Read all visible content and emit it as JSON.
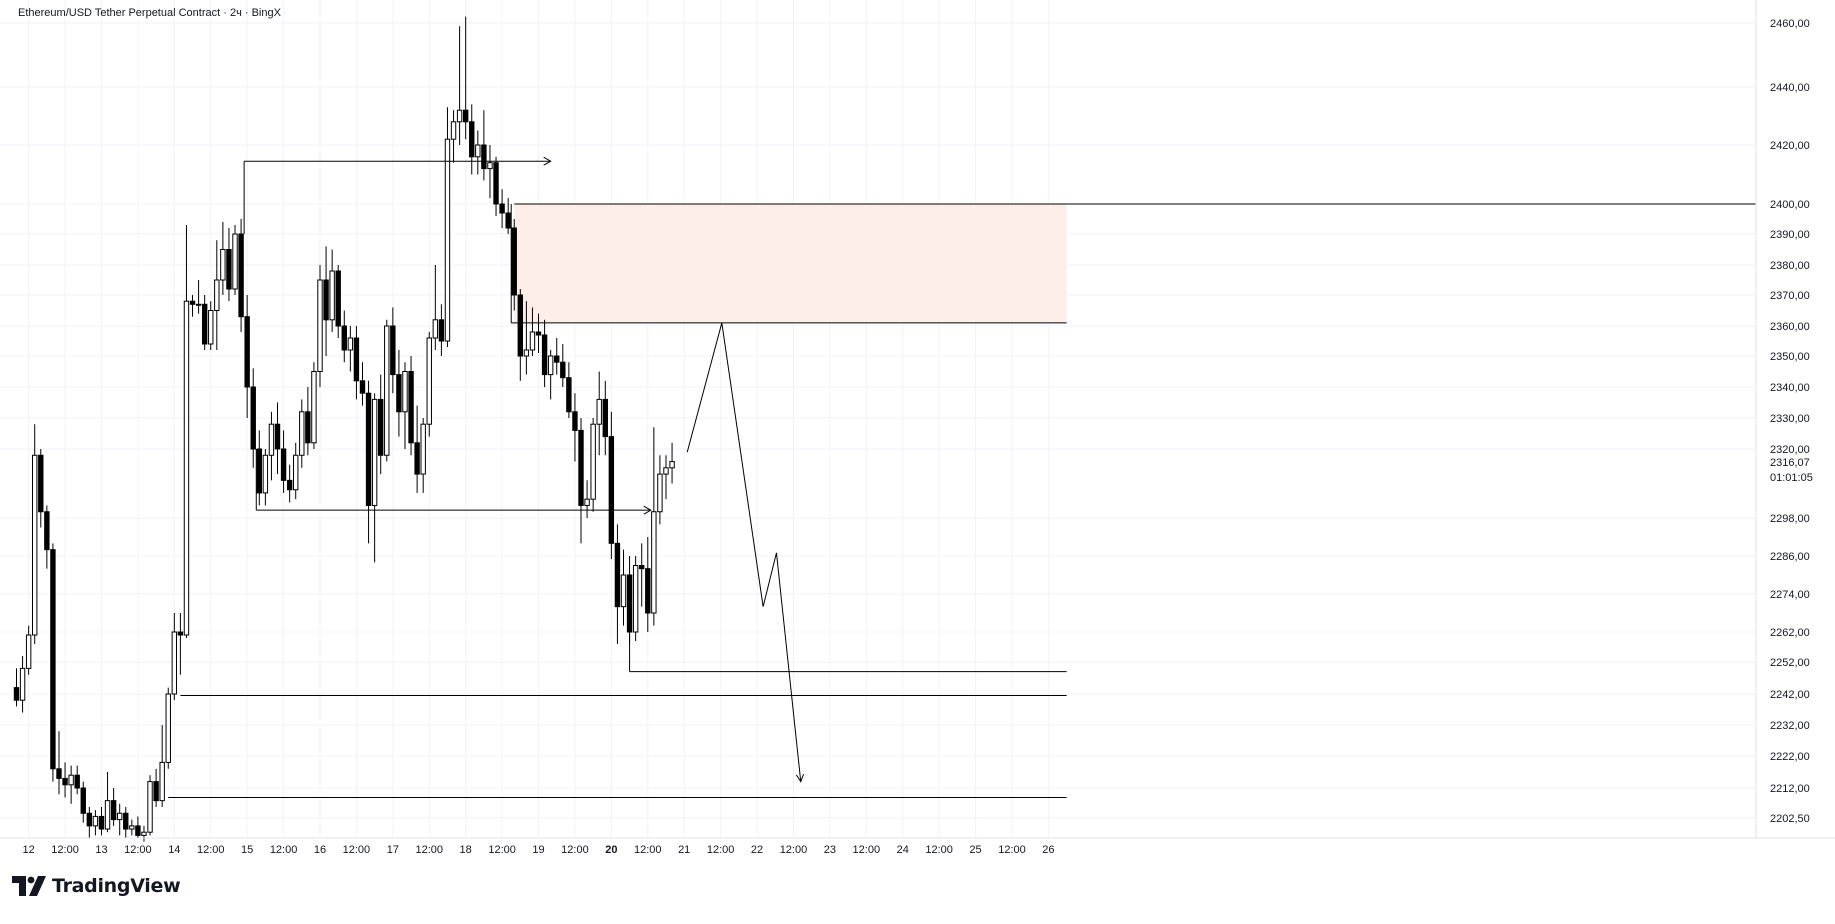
{
  "header": {
    "title": "Ethereum/USD Tether Perpetual Contract · 2ч · BingX"
  },
  "branding": {
    "logo_text": "TradingView",
    "logo_icon": "tradingview-logo-icon"
  },
  "price_scale": {
    "current_price": "2316,07",
    "countdown": "01:01:05"
  },
  "colors": {
    "background": "#ffffff",
    "grid": "#f0f3fa",
    "candle_up_fill": "#ffffff",
    "candle_down_fill": "#000000",
    "candle_border": "#000000",
    "drawing": "#000000",
    "supply_zone": "#fdeeea"
  },
  "chart_data": {
    "type": "candlestick",
    "symbol": "ETHUSDT.P",
    "interval": "2ч",
    "ylim": [
      2196,
      2468
    ],
    "y_ticks": [
      {
        "label": "2460,00",
        "value": 2460
      },
      {
        "label": "2440,00",
        "value": 2440
      },
      {
        "label": "2420,00",
        "value": 2420
      },
      {
        "label": "2400,00",
        "value": 2400
      },
      {
        "label": "2390,00",
        "value": 2390
      },
      {
        "label": "2380,00",
        "value": 2380
      },
      {
        "label": "2370,00",
        "value": 2370
      },
      {
        "label": "2360,00",
        "value": 2360
      },
      {
        "label": "2350,00",
        "value": 2350
      },
      {
        "label": "2340,00",
        "value": 2340
      },
      {
        "label": "2330,00",
        "value": 2330
      },
      {
        "label": "2320,00",
        "value": 2320
      },
      {
        "label": "2298,00",
        "value": 2298
      },
      {
        "label": "2286,00",
        "value": 2286
      },
      {
        "label": "2274,00",
        "value": 2274
      },
      {
        "label": "2262,00",
        "value": 2262
      },
      {
        "label": "2252,00",
        "value": 2252
      },
      {
        "label": "2242,00",
        "value": 2242
      },
      {
        "label": "2232,00",
        "value": 2232
      },
      {
        "label": "2222,00",
        "value": 2222
      },
      {
        "label": "2212,00",
        "value": 2212
      },
      {
        "label": "2202,50",
        "value": 2202.5
      }
    ],
    "x_ticks": [
      {
        "label": "12",
        "i": 2,
        "bold": false
      },
      {
        "label": "12:00",
        "i": 8,
        "bold": false
      },
      {
        "label": "13",
        "i": 14,
        "bold": false
      },
      {
        "label": "12:00",
        "i": 20,
        "bold": false
      },
      {
        "label": "14",
        "i": 26,
        "bold": false
      },
      {
        "label": "12:00",
        "i": 32,
        "bold": false
      },
      {
        "label": "15",
        "i": 38,
        "bold": false
      },
      {
        "label": "12:00",
        "i": 44,
        "bold": false
      },
      {
        "label": "16",
        "i": 50,
        "bold": false
      },
      {
        "label": "12:00",
        "i": 56,
        "bold": false
      },
      {
        "label": "17",
        "i": 62,
        "bold": false
      },
      {
        "label": "12:00",
        "i": 68,
        "bold": false
      },
      {
        "label": "18",
        "i": 74,
        "bold": false
      },
      {
        "label": "12:00",
        "i": 80,
        "bold": false
      },
      {
        "label": "19",
        "i": 86,
        "bold": false
      },
      {
        "label": "12:00",
        "i": 92,
        "bold": false
      },
      {
        "label": "20",
        "i": 98,
        "bold": true
      },
      {
        "label": "12:00",
        "i": 104,
        "bold": false
      },
      {
        "label": "21",
        "i": 110,
        "bold": false
      },
      {
        "label": "12:00",
        "i": 116,
        "bold": false
      },
      {
        "label": "22",
        "i": 122,
        "bold": false
      },
      {
        "label": "12:00",
        "i": 128,
        "bold": false
      },
      {
        "label": "23",
        "i": 134,
        "bold": false
      },
      {
        "label": "12:00",
        "i": 140,
        "bold": false
      },
      {
        "label": "24",
        "i": 146,
        "bold": false
      },
      {
        "label": "12:00",
        "i": 152,
        "bold": false
      },
      {
        "label": "25",
        "i": 158,
        "bold": false
      },
      {
        "label": "12:00",
        "i": 164,
        "bold": false
      },
      {
        "label": "26",
        "i": 170,
        "bold": false
      }
    ],
    "candles": [
      {
        "i": 0,
        "o": 2244,
        "h": 2250,
        "l": 2238,
        "c": 2240
      },
      {
        "i": 1,
        "o": 2240,
        "h": 2254,
        "l": 2236,
        "c": 2250
      },
      {
        "i": 2,
        "o": 2250,
        "h": 2264,
        "l": 2248,
        "c": 2261
      },
      {
        "i": 3,
        "o": 2261,
        "h": 2328,
        "l": 2258,
        "c": 2318
      },
      {
        "i": 4,
        "o": 2318,
        "h": 2320,
        "l": 2295,
        "c": 2300
      },
      {
        "i": 5,
        "o": 2300,
        "h": 2302,
        "l": 2282,
        "c": 2288
      },
      {
        "i": 6,
        "o": 2288,
        "h": 2290,
        "l": 2214,
        "c": 2218
      },
      {
        "i": 7,
        "o": 2218,
        "h": 2230,
        "l": 2210,
        "c": 2215
      },
      {
        "i": 8,
        "o": 2215,
        "h": 2220,
        "l": 2209,
        "c": 2213
      },
      {
        "i": 9,
        "o": 2213,
        "h": 2219,
        "l": 2207,
        "c": 2216
      },
      {
        "i": 10,
        "o": 2216,
        "h": 2219,
        "l": 2210,
        "c": 2212
      },
      {
        "i": 11,
        "o": 2212,
        "h": 2214,
        "l": 2201,
        "c": 2204
      },
      {
        "i": 12,
        "o": 2204,
        "h": 2206,
        "l": 2196,
        "c": 2200
      },
      {
        "i": 13,
        "o": 2200,
        "h": 2205,
        "l": 2197,
        "c": 2203
      },
      {
        "i": 14,
        "o": 2203,
        "h": 2206,
        "l": 2197,
        "c": 2199
      },
      {
        "i": 15,
        "o": 2199,
        "h": 2217,
        "l": 2198,
        "c": 2208
      },
      {
        "i": 16,
        "o": 2208,
        "h": 2212,
        "l": 2200,
        "c": 2202
      },
      {
        "i": 17,
        "o": 2202,
        "h": 2207,
        "l": 2197,
        "c": 2204
      },
      {
        "i": 18,
        "o": 2204,
        "h": 2206,
        "l": 2196,
        "c": 2199
      },
      {
        "i": 19,
        "o": 2199,
        "h": 2202,
        "l": 2197,
        "c": 2200
      },
      {
        "i": 20,
        "o": 2200,
        "h": 2203,
        "l": 2196,
        "c": 2197
      },
      {
        "i": 21,
        "o": 2197,
        "h": 2200,
        "l": 2195,
        "c": 2198
      },
      {
        "i": 22,
        "o": 2198,
        "h": 2216,
        "l": 2197,
        "c": 2214
      },
      {
        "i": 23,
        "o": 2214,
        "h": 2218,
        "l": 2206,
        "c": 2208
      },
      {
        "i": 24,
        "o": 2208,
        "h": 2232,
        "l": 2206,
        "c": 2220
      },
      {
        "i": 25,
        "o": 2220,
        "h": 2244,
        "l": 2218,
        "c": 2242
      },
      {
        "i": 26,
        "o": 2242,
        "h": 2268,
        "l": 2240,
        "c": 2262
      },
      {
        "i": 27,
        "o": 2262,
        "h": 2268,
        "l": 2248,
        "c": 2261
      },
      {
        "i": 28,
        "o": 2261,
        "h": 2393,
        "l": 2260,
        "c": 2368
      },
      {
        "i": 29,
        "o": 2368,
        "h": 2370,
        "l": 2363,
        "c": 2367
      },
      {
        "i": 30,
        "o": 2367,
        "h": 2375,
        "l": 2364,
        "c": 2367
      },
      {
        "i": 31,
        "o": 2367,
        "h": 2370,
        "l": 2352,
        "c": 2354
      },
      {
        "i": 32,
        "o": 2354,
        "h": 2368,
        "l": 2352,
        "c": 2365
      },
      {
        "i": 33,
        "o": 2365,
        "h": 2388,
        "l": 2352,
        "c": 2375
      },
      {
        "i": 34,
        "o": 2375,
        "h": 2394,
        "l": 2370,
        "c": 2385
      },
      {
        "i": 35,
        "o": 2385,
        "h": 2392,
        "l": 2368,
        "c": 2372
      },
      {
        "i": 36,
        "o": 2372,
        "h": 2393,
        "l": 2370,
        "c": 2390
      },
      {
        "i": 37,
        "o": 2390,
        "h": 2395,
        "l": 2358,
        "c": 2363
      },
      {
        "i": 38,
        "o": 2363,
        "h": 2370,
        "l": 2330,
        "c": 2340
      },
      {
        "i": 39,
        "o": 2340,
        "h": 2346,
        "l": 2314,
        "c": 2320
      },
      {
        "i": 40,
        "o": 2320,
        "h": 2326,
        "l": 2302,
        "c": 2306
      },
      {
        "i": 41,
        "o": 2306,
        "h": 2320,
        "l": 2302,
        "c": 2318
      },
      {
        "i": 42,
        "o": 2318,
        "h": 2332,
        "l": 2310,
        "c": 2328
      },
      {
        "i": 43,
        "o": 2328,
        "h": 2335,
        "l": 2312,
        "c": 2320
      },
      {
        "i": 44,
        "o": 2320,
        "h": 2326,
        "l": 2306,
        "c": 2310
      },
      {
        "i": 45,
        "o": 2310,
        "h": 2315,
        "l": 2303,
        "c": 2307
      },
      {
        "i": 46,
        "o": 2307,
        "h": 2322,
        "l": 2304,
        "c": 2318
      },
      {
        "i": 47,
        "o": 2318,
        "h": 2336,
        "l": 2314,
        "c": 2332
      },
      {
        "i": 48,
        "o": 2332,
        "h": 2340,
        "l": 2318,
        "c": 2322
      },
      {
        "i": 49,
        "o": 2322,
        "h": 2348,
        "l": 2320,
        "c": 2345
      },
      {
        "i": 50,
        "o": 2345,
        "h": 2380,
        "l": 2340,
        "c": 2375
      },
      {
        "i": 51,
        "o": 2375,
        "h": 2386,
        "l": 2350,
        "c": 2362
      },
      {
        "i": 52,
        "o": 2362,
        "h": 2385,
        "l": 2358,
        "c": 2378
      },
      {
        "i": 53,
        "o": 2378,
        "h": 2380,
        "l": 2356,
        "c": 2360
      },
      {
        "i": 54,
        "o": 2360,
        "h": 2365,
        "l": 2348,
        "c": 2352
      },
      {
        "i": 55,
        "o": 2352,
        "h": 2360,
        "l": 2345,
        "c": 2356
      },
      {
        "i": 56,
        "o": 2356,
        "h": 2360,
        "l": 2336,
        "c": 2342
      },
      {
        "i": 57,
        "o": 2342,
        "h": 2348,
        "l": 2334,
        "c": 2338
      },
      {
        "i": 58,
        "o": 2338,
        "h": 2342,
        "l": 2290,
        "c": 2302
      },
      {
        "i": 59,
        "o": 2302,
        "h": 2338,
        "l": 2284,
        "c": 2336
      },
      {
        "i": 60,
        "o": 2336,
        "h": 2344,
        "l": 2312,
        "c": 2318
      },
      {
        "i": 61,
        "o": 2318,
        "h": 2362,
        "l": 2316,
        "c": 2360
      },
      {
        "i": 62,
        "o": 2360,
        "h": 2366,
        "l": 2338,
        "c": 2344
      },
      {
        "i": 63,
        "o": 2344,
        "h": 2352,
        "l": 2324,
        "c": 2332
      },
      {
        "i": 64,
        "o": 2332,
        "h": 2348,
        "l": 2320,
        "c": 2345
      },
      {
        "i": 65,
        "o": 2345,
        "h": 2350,
        "l": 2318,
        "c": 2322
      },
      {
        "i": 66,
        "o": 2322,
        "h": 2334,
        "l": 2306,
        "c": 2312
      },
      {
        "i": 67,
        "o": 2312,
        "h": 2330,
        "l": 2306,
        "c": 2328
      },
      {
        "i": 68,
        "o": 2328,
        "h": 2358,
        "l": 2324,
        "c": 2356
      },
      {
        "i": 69,
        "o": 2356,
        "h": 2380,
        "l": 2352,
        "c": 2362
      },
      {
        "i": 70,
        "o": 2362,
        "h": 2367,
        "l": 2350,
        "c": 2355
      },
      {
        "i": 71,
        "o": 2355,
        "h": 2433,
        "l": 2353,
        "c": 2422
      },
      {
        "i": 72,
        "o": 2422,
        "h": 2432,
        "l": 2414,
        "c": 2428
      },
      {
        "i": 73,
        "o": 2428,
        "h": 2459,
        "l": 2420,
        "c": 2432
      },
      {
        "i": 74,
        "o": 2432,
        "h": 2462,
        "l": 2422,
        "c": 2428
      },
      {
        "i": 75,
        "o": 2428,
        "h": 2434,
        "l": 2410,
        "c": 2416
      },
      {
        "i": 76,
        "o": 2416,
        "h": 2425,
        "l": 2410,
        "c": 2420
      },
      {
        "i": 77,
        "o": 2420,
        "h": 2432,
        "l": 2408,
        "c": 2412
      },
      {
        "i": 78,
        "o": 2412,
        "h": 2420,
        "l": 2402,
        "c": 2414
      },
      {
        "i": 79,
        "o": 2414,
        "h": 2416,
        "l": 2396,
        "c": 2400
      },
      {
        "i": 80,
        "o": 2400,
        "h": 2405,
        "l": 2392,
        "c": 2397
      },
      {
        "i": 81,
        "o": 2397,
        "h": 2402,
        "l": 2390,
        "c": 2392
      },
      {
        "i": 82,
        "o": 2392,
        "h": 2395,
        "l": 2365,
        "c": 2370
      },
      {
        "i": 83,
        "o": 2370,
        "h": 2372,
        "l": 2342,
        "c": 2350
      },
      {
        "i": 84,
        "o": 2350,
        "h": 2368,
        "l": 2344,
        "c": 2352
      },
      {
        "i": 85,
        "o": 2352,
        "h": 2366,
        "l": 2350,
        "c": 2358
      },
      {
        "i": 86,
        "o": 2358,
        "h": 2364,
        "l": 2351,
        "c": 2357
      },
      {
        "i": 87,
        "o": 2357,
        "h": 2362,
        "l": 2340,
        "c": 2344
      },
      {
        "i": 88,
        "o": 2344,
        "h": 2352,
        "l": 2336,
        "c": 2350
      },
      {
        "i": 89,
        "o": 2350,
        "h": 2356,
        "l": 2344,
        "c": 2348
      },
      {
        "i": 90,
        "o": 2348,
        "h": 2354,
        "l": 2340,
        "c": 2343
      },
      {
        "i": 91,
        "o": 2343,
        "h": 2348,
        "l": 2330,
        "c": 2332
      },
      {
        "i": 92,
        "o": 2332,
        "h": 2338,
        "l": 2316,
        "c": 2326
      },
      {
        "i": 93,
        "o": 2326,
        "h": 2330,
        "l": 2290,
        "c": 2302
      },
      {
        "i": 94,
        "o": 2302,
        "h": 2310,
        "l": 2298,
        "c": 2304
      },
      {
        "i": 95,
        "o": 2304,
        "h": 2330,
        "l": 2300,
        "c": 2328
      },
      {
        "i": 96,
        "o": 2328,
        "h": 2345,
        "l": 2318,
        "c": 2336
      },
      {
        "i": 97,
        "o": 2336,
        "h": 2342,
        "l": 2318,
        "c": 2324
      },
      {
        "i": 98,
        "o": 2324,
        "h": 2332,
        "l": 2285,
        "c": 2290
      },
      {
        "i": 99,
        "o": 2290,
        "h": 2296,
        "l": 2258,
        "c": 2270
      },
      {
        "i": 100,
        "o": 2270,
        "h": 2288,
        "l": 2264,
        "c": 2280
      },
      {
        "i": 101,
        "o": 2280,
        "h": 2286,
        "l": 2258,
        "c": 2262
      },
      {
        "i": 102,
        "o": 2262,
        "h": 2286,
        "l": 2259,
        "c": 2283
      },
      {
        "i": 103,
        "o": 2283,
        "h": 2290,
        "l": 2270,
        "c": 2282
      },
      {
        "i": 104,
        "o": 2282,
        "h": 2292,
        "l": 2262,
        "c": 2268
      },
      {
        "i": 105,
        "o": 2268,
        "h": 2327,
        "l": 2264,
        "c": 2300
      },
      {
        "i": 106,
        "o": 2300,
        "h": 2318,
        "l": 2296,
        "c": 2312
      },
      {
        "i": 107,
        "o": 2312,
        "h": 2318,
        "l": 2304,
        "c": 2314
      },
      {
        "i": 108,
        "o": 2314,
        "h": 2322,
        "l": 2309,
        "c": 2316
      }
    ],
    "drawings": {
      "supply_zone": {
        "from_i": 82,
        "to_i": 173,
        "top": 2400,
        "bottom": 2361
      },
      "horizontal_lines": [
        {
          "from_i": 37.5,
          "to_i": 88,
          "price": 2414.5,
          "vertical_from": 2390,
          "arrow": true
        },
        {
          "from_i": 39.5,
          "to_i": 104.5,
          "price": 2300.5,
          "vertical_from": 2320,
          "arrow": true
        },
        {
          "from_i": 101,
          "to_i": 173,
          "price": 2249,
          "vertical_from": 2263,
          "arrow": false
        },
        {
          "from_i": 27,
          "to_i": 173,
          "price": 2241.5,
          "vertical_from": null,
          "arrow": false
        },
        {
          "from_i": 25,
          "to_i": 173,
          "price": 2209,
          "vertical_from": null,
          "arrow": false
        },
        {
          "from_i": 81.5,
          "to_i": 173,
          "price": 2361,
          "vertical_from": 2400,
          "arrow": false
        }
      ],
      "projection_path": [
        {
          "i": 110.5,
          "p": 2319
        },
        {
          "i": 116.2,
          "p": 2361
        },
        {
          "i": 123.0,
          "p": 2270
        },
        {
          "i": 125.2,
          "p": 2287
        },
        {
          "i": 129.2,
          "p": 2214
        }
      ]
    }
  }
}
